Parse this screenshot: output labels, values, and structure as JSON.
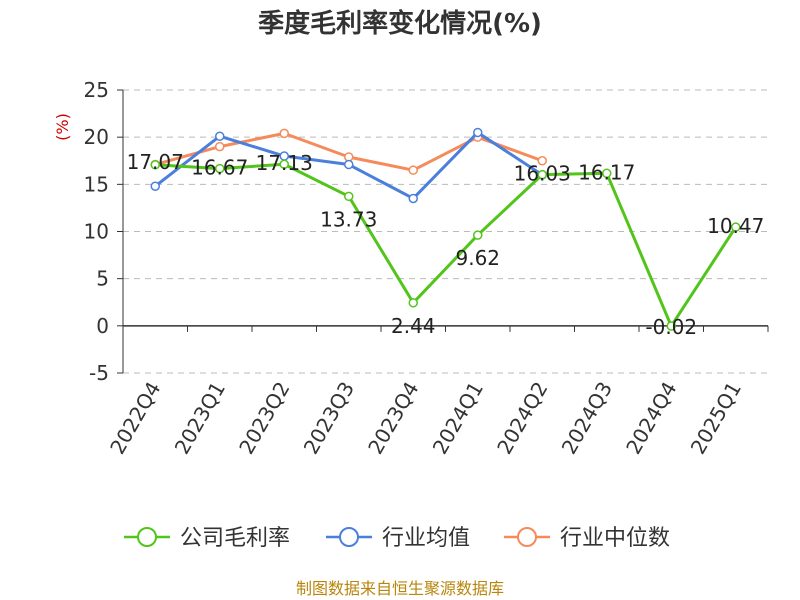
{
  "chart_data": {
    "type": "line",
    "title": "季度毛利率变化情况(%)",
    "unit_label": "(%)",
    "categories": [
      "2022Q4",
      "2023Q1",
      "2023Q2",
      "2023Q3",
      "2023Q4",
      "2024Q1",
      "2024Q2",
      "2024Q3",
      "2024Q4",
      "2025Q1"
    ],
    "ylim": [
      -5,
      25
    ],
    "yticks": [
      25,
      20,
      15,
      10,
      5,
      0,
      -5
    ],
    "grid": true,
    "legend_position": "bottom",
    "series": [
      {
        "name": "公司毛利率",
        "color": "#52c41a",
        "values": [
          17.07,
          16.67,
          17.13,
          13.73,
          2.44,
          9.62,
          16.03,
          16.17,
          -0.02,
          10.47
        ],
        "labels": [
          "17.07",
          "16.67",
          "17.13",
          "13.73",
          "2.44",
          "9.62",
          "16.03",
          "16.17",
          "-0.02",
          "10.47"
        ]
      },
      {
        "name": "行业均值",
        "color": "#4a7fdc",
        "values": [
          14.8,
          20.1,
          18.0,
          17.1,
          13.5,
          20.5,
          16.0,
          null,
          null,
          null
        ]
      },
      {
        "name": "行业中位数",
        "color": "#f58b5a",
        "values": [
          17.1,
          19.0,
          20.4,
          17.9,
          16.5,
          20.0,
          17.5,
          null,
          null,
          null
        ]
      }
    ],
    "source": "制图数据来自恒生聚源数据库"
  }
}
